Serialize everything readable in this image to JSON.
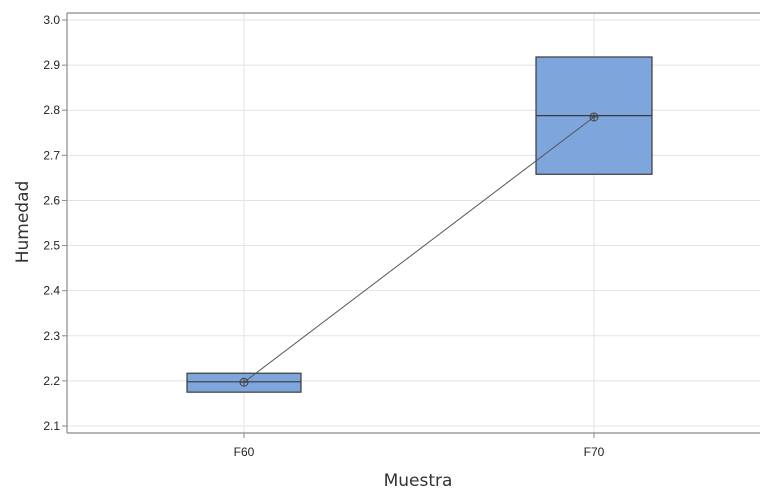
{
  "chart_data": {
    "type": "box",
    "xlabel": "Muestra",
    "ylabel": "Humedad",
    "categories": [
      "F60",
      "F70"
    ],
    "boxes": [
      {
        "category": "F60",
        "q1": 2.175,
        "median": 2.198,
        "q3": 2.217,
        "mean": 2.197
      },
      {
        "category": "F70",
        "q1": 2.658,
        "median": 2.788,
        "q3": 2.918,
        "mean": 2.785
      }
    ],
    "ylim": [
      2.09,
      3.01
    ],
    "yticks": [
      "2.1",
      "2.2",
      "2.3",
      "2.4",
      "2.5",
      "2.6",
      "2.7",
      "2.8",
      "2.9",
      "3.0"
    ],
    "grid": true,
    "mean_connect_line": true,
    "colors": {
      "box_fill": "#7ea6dc",
      "box_stroke": "#3a3a3a",
      "grid": "#e3e3e3",
      "axis": "#8a8a8a"
    }
  }
}
